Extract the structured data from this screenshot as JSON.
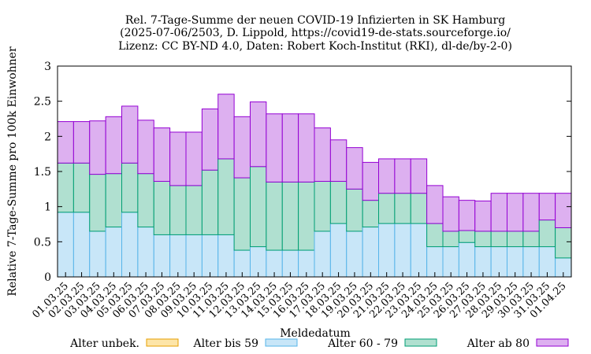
{
  "chart_data": {
    "type": "bar",
    "stacked": true,
    "title_lines": [
      "Rel. 7-Tage-Summe der neuen COVID-19 Infizierten in SK Hamburg",
      "(2025-07-06/2503, D. Lippold, https://covid19-de-stats.sourceforge.io/",
      "Lizenz: CC BY-ND 4.0, Daten: Robert Koch-Institut (RKI), dl-de/by-2-0)"
    ],
    "xlabel": "Meldedatum",
    "ylabel": "Relative 7-Tage-Summe pro 100k Einwohner",
    "ylim": [
      0,
      3
    ],
    "yticks": [
      "0",
      "0.5",
      "1",
      "1.5",
      "2",
      "2.5",
      "3"
    ],
    "grid": false,
    "legend_position": "bottom",
    "categories": [
      "01.03.25",
      "02.03.25",
      "03.03.25",
      "04.03.25",
      "05.03.25",
      "06.03.25",
      "07.03.25",
      "08.03.25",
      "09.03.25",
      "10.03.25",
      "11.03.25",
      "12.03.25",
      "13.03.25",
      "14.03.25",
      "15.03.25",
      "16.03.25",
      "17.03.25",
      "18.03.25",
      "19.03.25",
      "20.03.25",
      "21.03.25",
      "22.03.25",
      "23.03.25",
      "24.03.25",
      "25.03.25",
      "26.03.25",
      "27.03.25",
      "28.03.25",
      "29.03.25",
      "30.03.25",
      "31.03.25",
      "01.04.25"
    ],
    "series": [
      {
        "name": "Alter unbek.",
        "fill": "#fde5a8",
        "stroke": "#e69f00",
        "values": [
          0,
          0,
          0,
          0,
          0,
          0,
          0,
          0,
          0,
          0,
          0,
          0,
          0,
          0,
          0,
          0,
          0,
          0,
          0,
          0,
          0,
          0,
          0,
          0,
          0,
          0,
          0,
          0,
          0,
          0,
          0,
          0
        ]
      },
      {
        "name": "Alter bis 59",
        "fill": "#c8e6f8",
        "stroke": "#56b4e9",
        "values": [
          0.92,
          0.92,
          0.65,
          0.71,
          0.92,
          0.71,
          0.6,
          0.6,
          0.6,
          0.6,
          0.6,
          0.38,
          0.43,
          0.38,
          0.38,
          0.38,
          0.65,
          0.76,
          0.65,
          0.71,
          0.76,
          0.76,
          0.76,
          0.43,
          0.43,
          0.49,
          0.43,
          0.43,
          0.43,
          0.43,
          0.43,
          0.27
        ]
      },
      {
        "name": "Alter 60 - 79",
        "fill": "#b0e0d0",
        "stroke": "#009e73",
        "values": [
          0.7,
          0.7,
          0.81,
          0.76,
          0.7,
          0.76,
          0.76,
          0.7,
          0.7,
          0.92,
          1.08,
          1.03,
          1.14,
          0.97,
          0.97,
          0.97,
          0.71,
          0.6,
          0.6,
          0.38,
          0.43,
          0.43,
          0.43,
          0.33,
          0.22,
          0.17,
          0.22,
          0.22,
          0.22,
          0.22,
          0.38,
          0.43
        ]
      },
      {
        "name": "Alter ab 80",
        "fill": "#ddb0f0",
        "stroke": "#9400d3",
        "values": [
          0.59,
          0.59,
          0.76,
          0.81,
          0.81,
          0.76,
          0.76,
          0.76,
          0.76,
          0.87,
          0.92,
          0.87,
          0.92,
          0.97,
          0.97,
          0.97,
          0.76,
          0.59,
          0.59,
          0.54,
          0.49,
          0.49,
          0.49,
          0.54,
          0.49,
          0.43,
          0.43,
          0.54,
          0.54,
          0.54,
          0.38,
          0.49
        ]
      }
    ]
  }
}
